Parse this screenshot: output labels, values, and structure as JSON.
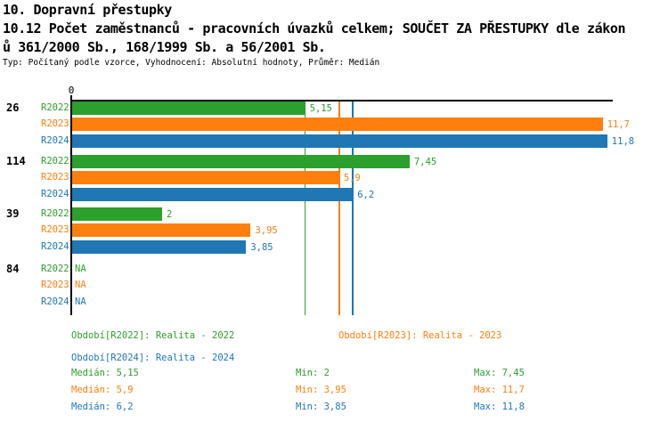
{
  "header": {
    "title_line1": "10. Dopravní přestupky",
    "title_line2": "10.12 Počet zaměstnanců - pracovních úvazků celkem; SOUČET ZA PŘESTUPKY dle zákon",
    "title_line3": "ů 361/2000 Sb., 168/1999 Sb. a 56/2001 Sb.",
    "subtitle": "Typ: Počítaný podle vzorce, Vyhodnocení: Absolutní hodnoty, Průměr: Medián"
  },
  "chart_data": {
    "type": "bar",
    "orientation": "horizontal",
    "grid": false,
    "x_axis": {
      "min": 0,
      "zero_tick_label": "0",
      "approx_max": 11.9
    },
    "series": [
      {
        "name": "R2022",
        "color": "#2ca02c",
        "median": 5.15,
        "min": 2,
        "max": 7.45
      },
      {
        "name": "R2023",
        "color": "#ff7f0e",
        "median": 5.9,
        "min": 3.95,
        "max": 11.7
      },
      {
        "name": "R2024",
        "color": "#1f77b4",
        "median": 6.2,
        "min": 3.85,
        "max": 11.8
      }
    ],
    "median_reference_lines": [
      5.15,
      5.9,
      6.2
    ],
    "groups": [
      {
        "label": "26",
        "values": [
          5.15,
          11.7,
          11.8
        ],
        "value_labels": [
          "5,15",
          "11,7",
          "11,8"
        ]
      },
      {
        "label": "114",
        "values": [
          7.45,
          5.9,
          6.2
        ],
        "value_labels": [
          "7,45",
          "5,9",
          "6,2"
        ]
      },
      {
        "label": "39",
        "values": [
          2,
          3.95,
          3.85
        ],
        "value_labels": [
          "2",
          "3,95",
          "3,85"
        ]
      },
      {
        "label": "84",
        "values": [
          null,
          null,
          null
        ],
        "value_labels": [
          "NA",
          "NA",
          "NA"
        ]
      }
    ]
  },
  "legend": {
    "items": [
      {
        "label": "Období[R2022]: Realita - 2022",
        "color": "#2ca02c"
      },
      {
        "label": "Období[R2023]: Realita - 2023",
        "color": "#ff7f0e"
      },
      {
        "label": "Období[R2024]: Realita - 2024",
        "color": "#1f77b4"
      }
    ]
  },
  "stats": {
    "rows": [
      {
        "color": "#2ca02c",
        "median": "Medián: 5,15",
        "min": "Min: 2",
        "max": "Max: 7,45"
      },
      {
        "color": "#ff7f0e",
        "median": "Medián: 5,9",
        "min": "Min: 3,95",
        "max": "Max: 11,7"
      },
      {
        "color": "#1f77b4",
        "median": "Medián: 6,2",
        "min": "Min: 3,85",
        "max": "Max: 11,8"
      }
    ]
  }
}
